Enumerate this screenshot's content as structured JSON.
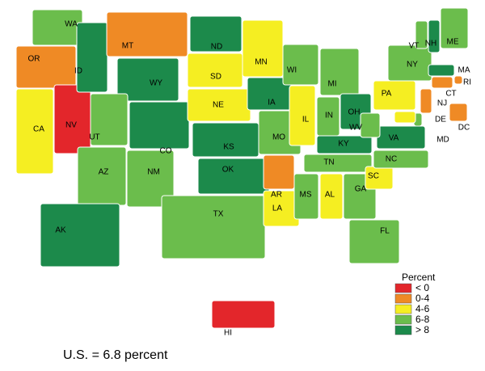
{
  "legend": {
    "title": "Percent",
    "items": [
      {
        "label": "< 0",
        "color": "#e3262b"
      },
      {
        "label": "0-4",
        "color": "#ef8a25"
      },
      {
        "label": "4-6",
        "color": "#f5ee22"
      },
      {
        "label": "6-8",
        "color": "#6bbd4c"
      },
      {
        "label": "> 8",
        "color": "#1c8a4b"
      }
    ]
  },
  "states": [
    {
      "label": "WA",
      "category": "6-8"
    },
    {
      "label": "OR",
      "category": "0-4"
    },
    {
      "label": "CA",
      "category": "4-6"
    },
    {
      "label": "NV",
      "category": "< 0"
    },
    {
      "label": "ID",
      "category": "> 8"
    },
    {
      "label": "MT",
      "category": "0-4"
    },
    {
      "label": "WY",
      "category": "> 8"
    },
    {
      "label": "UT",
      "category": "6-8"
    },
    {
      "label": "CO",
      "category": "> 8"
    },
    {
      "label": "AZ",
      "category": "6-8"
    },
    {
      "label": "NM",
      "category": "6-8"
    },
    {
      "label": "ND",
      "category": "> 8"
    },
    {
      "label": "SD",
      "category": "4-6"
    },
    {
      "label": "NE",
      "category": "4-6"
    },
    {
      "label": "KS",
      "category": "> 8"
    },
    {
      "label": "OK",
      "category": "> 8"
    },
    {
      "label": "TX",
      "category": "6-8"
    },
    {
      "label": "MN",
      "category": "4-6"
    },
    {
      "label": "IA",
      "category": "> 8"
    },
    {
      "label": "MO",
      "category": "6-8"
    },
    {
      "label": "AR",
      "category": "0-4"
    },
    {
      "label": "LA",
      "category": "4-6"
    },
    {
      "label": "WI",
      "category": "6-8"
    },
    {
      "label": "IL",
      "category": "4-6"
    },
    {
      "label": "MI",
      "category": "6-8"
    },
    {
      "label": "IN",
      "category": "6-8"
    },
    {
      "label": "OH",
      "category": "> 8"
    },
    {
      "label": "KY",
      "category": "> 8"
    },
    {
      "label": "TN",
      "category": "6-8"
    },
    {
      "label": "MS",
      "category": "6-8"
    },
    {
      "label": "AL",
      "category": "4-6"
    },
    {
      "label": "GA",
      "category": "6-8"
    },
    {
      "label": "FL",
      "category": "6-8"
    },
    {
      "label": "SC",
      "category": "4-6"
    },
    {
      "label": "NC",
      "category": "6-8"
    },
    {
      "label": "VA",
      "category": "> 8"
    },
    {
      "label": "WV",
      "category": "6-8"
    },
    {
      "label": "PA",
      "category": "4-6"
    },
    {
      "label": "NY",
      "category": "6-8"
    },
    {
      "label": "VT",
      "category": "6-8"
    },
    {
      "label": "NH",
      "category": "> 8"
    },
    {
      "label": "ME",
      "category": "6-8"
    },
    {
      "label": "MA",
      "category": "> 8"
    },
    {
      "label": "RI",
      "category": "0-4"
    },
    {
      "label": "CT",
      "category": "0-4"
    },
    {
      "label": "NJ",
      "category": "0-4"
    },
    {
      "label": "DE",
      "category": "6-8"
    },
    {
      "label": "MD",
      "category": "4-6"
    },
    {
      "label": "DC",
      "category": "0-4"
    },
    {
      "label": "AK",
      "category": "> 8"
    },
    {
      "label": "HI",
      "category": "< 0"
    }
  ],
  "footer": "U.S. = 6.8 percent"
}
